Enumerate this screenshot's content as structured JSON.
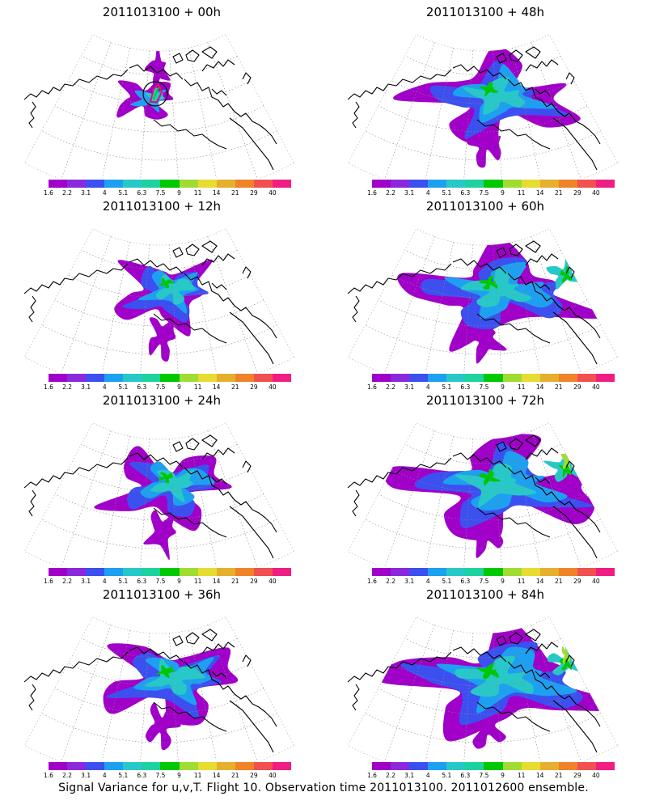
{
  "caption": "Signal Variance for u,v,T. Flight 10. Observation time 2011013100. 2011012600 ensemble.",
  "colorbar": {
    "labels": [
      "1.6",
      "2.2",
      "3.1",
      "4",
      "5.1",
      "6.3",
      "7.5",
      "9",
      "11",
      "14",
      "21",
      "29",
      "40"
    ],
    "colors": [
      "#a000c8",
      "#8c28dc",
      "#3c50f0",
      "#1ea0f0",
      "#28c8c8",
      "#1ed2a0",
      "#00c800",
      "#a0dc32",
      "#e6dc32",
      "#e6af2d",
      "#f08228",
      "#f05050",
      "#f01e82"
    ]
  },
  "panels": [
    {
      "title": "2011013100 + 00h",
      "col": 0,
      "row": 0,
      "lead": 0
    },
    {
      "title": "2011013100 + 48h",
      "col": 1,
      "row": 0,
      "lead": 48
    },
    {
      "title": "2011013100 + 12h",
      "col": 0,
      "row": 1,
      "lead": 12
    },
    {
      "title": "2011013100 + 60h",
      "col": 1,
      "row": 1,
      "lead": 60
    },
    {
      "title": "2011013100 + 24h",
      "col": 0,
      "row": 2,
      "lead": 24
    },
    {
      "title": "2011013100 + 72h",
      "col": 1,
      "row": 2,
      "lead": 72
    },
    {
      "title": "2011013100 + 36h",
      "col": 0,
      "row": 3,
      "lead": 36
    },
    {
      "title": "2011013100 + 84h",
      "col": 1,
      "row": 3,
      "lead": 84
    }
  ]
}
